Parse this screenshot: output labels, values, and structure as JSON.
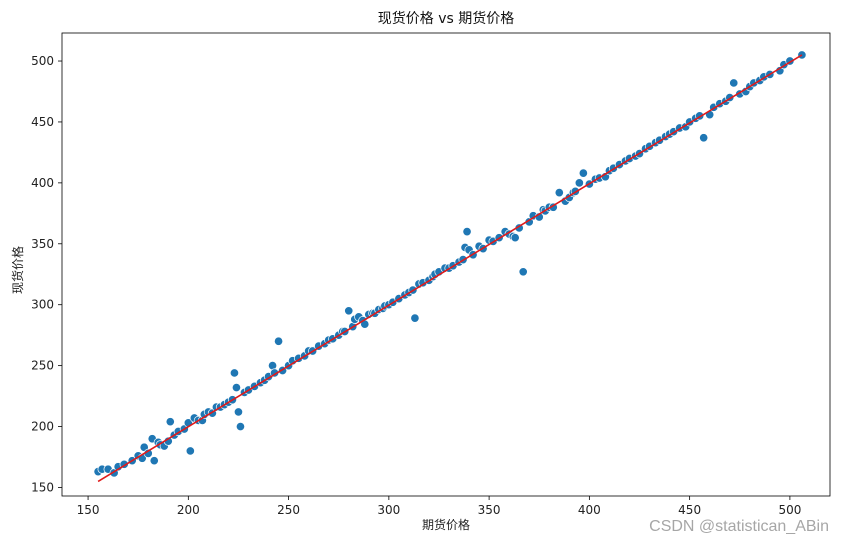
{
  "chart_data": {
    "type": "scatter",
    "title": "现货价格 vs 期货价格",
    "xlabel": "期货价格",
    "ylabel": "现货价格",
    "xlim": [
      137,
      520
    ],
    "ylim": [
      143,
      523
    ],
    "xticks": [
      150,
      200,
      250,
      300,
      350,
      400,
      450,
      500
    ],
    "yticks": [
      150,
      200,
      250,
      300,
      350,
      400,
      450,
      500
    ],
    "grid": false,
    "legend": "none",
    "colors": {
      "points": "#1f77b4",
      "line": "#e01a1a"
    },
    "fit_line": {
      "x": [
        155,
        506
      ],
      "y": [
        155,
        505
      ]
    },
    "series": [
      {
        "x": [
          155,
          157,
          160,
          163,
          165,
          168,
          172,
          175,
          177,
          178,
          180,
          182,
          183,
          185,
          186,
          188,
          190,
          191,
          193,
          195,
          198,
          200,
          201,
          203,
          205,
          207,
          208,
          210,
          212,
          214,
          216,
          218,
          220,
          222,
          223,
          224,
          225,
          226,
          228,
          230,
          233,
          236,
          238,
          240,
          242,
          243,
          245,
          247,
          250,
          252,
          255,
          258,
          260,
          262,
          265,
          268,
          270,
          272,
          275,
          277,
          278,
          280,
          282,
          283,
          285,
          287,
          288,
          290,
          292,
          293,
          295,
          297,
          298,
          300,
          302,
          305,
          308,
          310,
          312,
          313,
          315,
          317,
          320,
          322,
          323,
          325,
          328,
          330,
          332,
          335,
          337,
          338,
          339,
          340,
          342,
          345,
          347,
          350,
          352,
          355,
          358,
          360,
          362,
          363,
          365,
          367,
          370,
          372,
          375,
          377,
          378,
          380,
          382,
          385,
          388,
          390,
          392,
          393,
          395,
          397,
          400,
          403,
          405,
          408,
          410,
          412,
          415,
          418,
          420,
          423,
          425,
          428,
          430,
          433,
          435,
          438,
          440,
          442,
          445,
          448,
          450,
          453,
          455,
          457,
          460,
          462,
          465,
          468,
          470,
          472,
          475,
          478,
          480,
          482,
          485,
          487,
          490,
          495,
          497,
          500,
          506
        ],
        "y": [
          163,
          165,
          165,
          162,
          167,
          169,
          172,
          176,
          174,
          183,
          178,
          190,
          172,
          187,
          185,
          184,
          188,
          204,
          193,
          196,
          198,
          203,
          180,
          207,
          205,
          205,
          210,
          212,
          211,
          216,
          216,
          218,
          220,
          222,
          244,
          232,
          212,
          200,
          228,
          230,
          233,
          236,
          238,
          241,
          250,
          244,
          270,
          246,
          250,
          254,
          256,
          258,
          262,
          262,
          266,
          268,
          271,
          272,
          275,
          278,
          278,
          295,
          282,
          288,
          290,
          287,
          284,
          292,
          293,
          293,
          296,
          297,
          299,
          300,
          302,
          305,
          308,
          310,
          312,
          289,
          317,
          318,
          320,
          323,
          325,
          327,
          330,
          330,
          332,
          335,
          337,
          347,
          360,
          345,
          341,
          348,
          346,
          353,
          352,
          355,
          360,
          358,
          356,
          355,
          363,
          327,
          368,
          373,
          372,
          378,
          377,
          380,
          380,
          392,
          385,
          388,
          392,
          393,
          400,
          408,
          399,
          403,
          404,
          405,
          410,
          412,
          415,
          418,
          420,
          422,
          424,
          428,
          430,
          433,
          435,
          438,
          440,
          442,
          445,
          446,
          450,
          453,
          455,
          437,
          456,
          462,
          465,
          467,
          470,
          482,
          473,
          475,
          479,
          482,
          484,
          487,
          489,
          492,
          497,
          500,
          505
        ]
      }
    ]
  },
  "watermark": "CSDN @statistican_ABin"
}
